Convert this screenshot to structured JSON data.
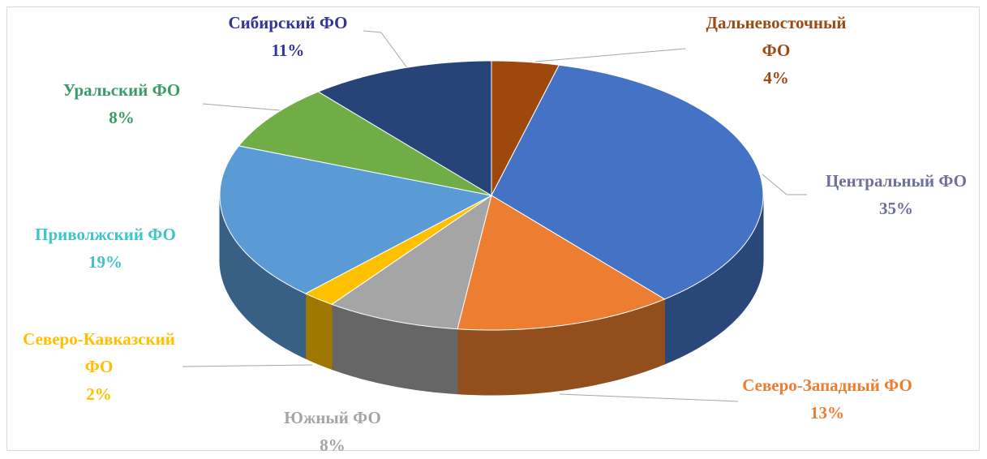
{
  "chart_data": {
    "type": "pie3d",
    "categories": [
      "Дальневосточный ФО",
      "Центральный ФО",
      "Северо-Западный ФО",
      "Южный ФО",
      "Северо-Кавказский ФО",
      "Приволжский ФО",
      "Уральский ФО",
      "Сибирский ФО"
    ],
    "values": [
      4,
      35,
      13,
      8,
      2,
      19,
      8,
      11
    ],
    "value_labels": [
      "4%",
      "35%",
      "13%",
      "8%",
      "2%",
      "19%",
      "8%",
      "11%"
    ],
    "colors": [
      "#9e480e",
      "#4472c4",
      "#ed7d31",
      "#a5a5a5",
      "#ffc000",
      "#5b9bd5",
      "#70ad47",
      "#264478"
    ],
    "label_colors": [
      "#9c4a12",
      "#6f6f9c",
      "#ed7d31",
      "#a5a5a5",
      "#ffc000",
      "#3fc4c8",
      "#3a9a6a",
      "#33339a"
    ]
  }
}
